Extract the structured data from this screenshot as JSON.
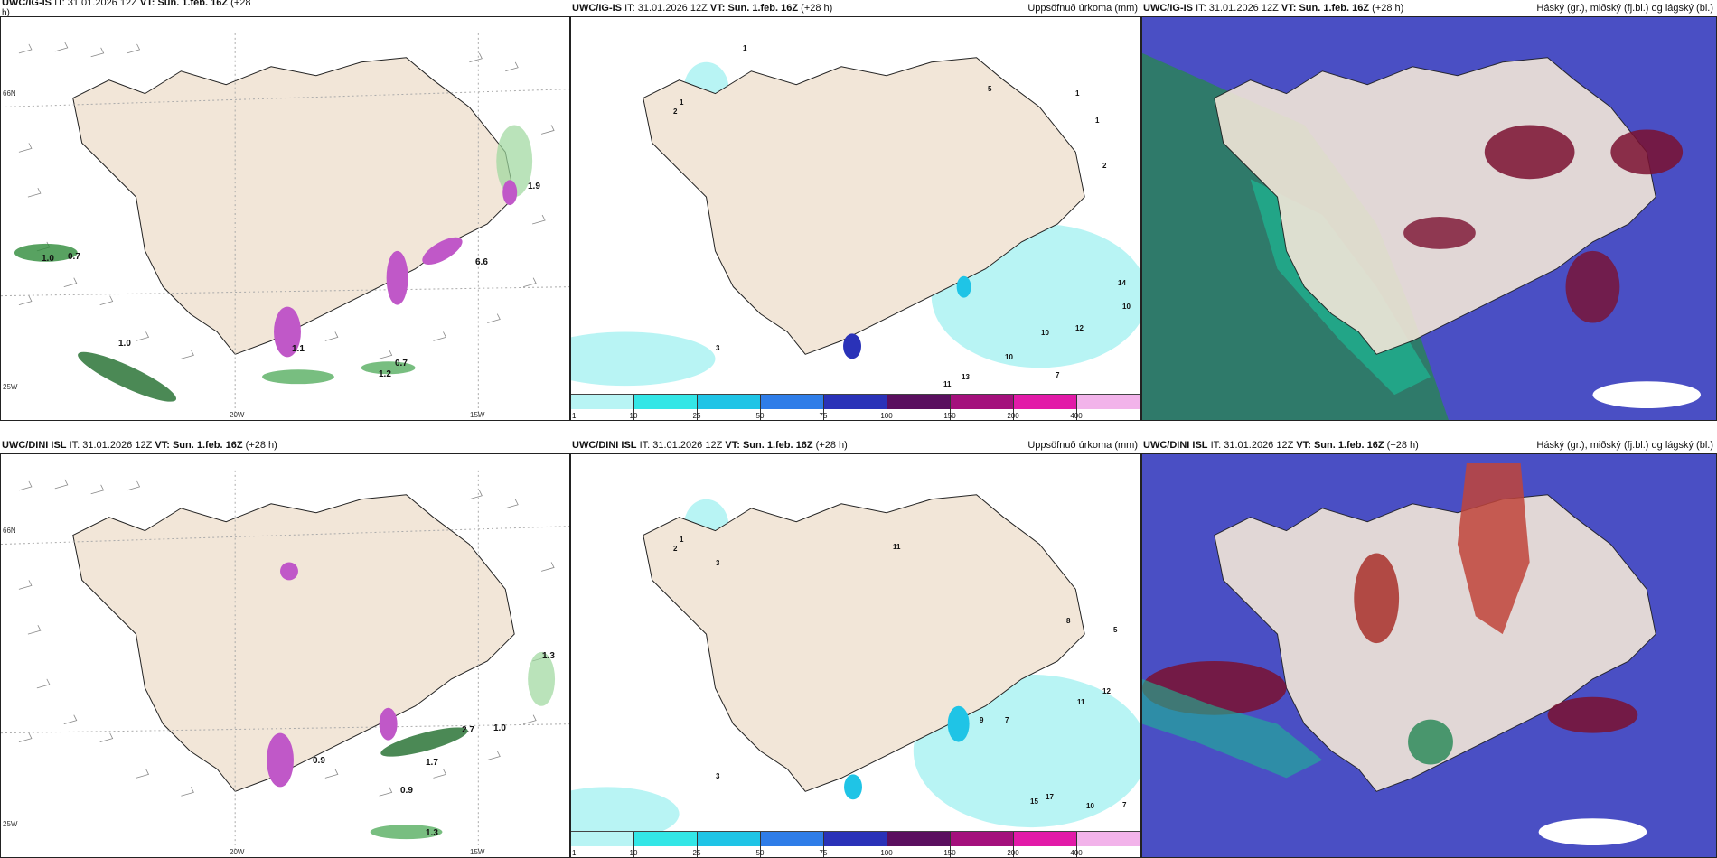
{
  "panels": {
    "wind_igis": {
      "model": "UWC/IG-IS",
      "it_label": "IT:",
      "it_value": "31.01.2026 12Z",
      "vt_label": "VT:",
      "vt_value": "Sun. 1.feb. 16Z",
      "lead": "(+28",
      "lead_wrap": "h)",
      "lon_labels": [
        "20W",
        "15W"
      ],
      "lat_labels": [
        "66N",
        "25W"
      ],
      "values": [
        "1.0",
        "0.7",
        "1.0",
        "1.1",
        "0.7",
        "1.2",
        "1.9",
        "6.6"
      ]
    },
    "precip_igis": {
      "model": "UWC/IG-IS",
      "it_label": "IT:",
      "it_value": "31.01.2026 12Z",
      "vt_label": "VT:",
      "vt_value": "Sun. 1.feb. 16Z",
      "lead": "(+28 h)",
      "field_title": "Uppsöfnuð úrkoma (mm)",
      "values": [
        "1",
        "2",
        "3",
        "5",
        "1",
        "1",
        "1",
        "2",
        "14",
        "10",
        "12",
        "10",
        "10",
        "13",
        "11",
        "7"
      ]
    },
    "cloud_igis": {
      "model": "UWC/IG-IS",
      "it_label": "IT:",
      "it_value": "31.01.2026 12Z",
      "vt_label": "VT:",
      "vt_value": "Sun. 1.feb. 16Z",
      "lead": "(+28 h)",
      "field_title": "Háský (gr.), miðský (fj.bl.) og lágský (bl.)"
    },
    "wind_dini": {
      "model": "UWC/DINI ISL",
      "it_label": "IT:",
      "it_value": "31.01.2026 12Z",
      "vt_label": "VT:",
      "vt_value": "Sun. 1.feb. 16Z",
      "lead": "(+28 h)",
      "lon_labels": [
        "20W",
        "15W"
      ],
      "lat_labels": [
        "66N",
        "25W"
      ],
      "values": [
        "1.3",
        "1.0",
        "2.7",
        "0.9",
        "1.3",
        "1.7",
        "0.9"
      ]
    },
    "precip_dini": {
      "model": "UWC/DINI ISL",
      "it_label": "IT:",
      "it_value": "31.01.2026 12Z",
      "vt_label": "VT:",
      "vt_value": "Sun. 1.feb. 16Z",
      "lead": "(+28 h)",
      "field_title": "Uppsöfnuð úrkoma (mm)",
      "values": [
        "1",
        "2",
        "3",
        "11",
        "8",
        "12",
        "5",
        "15",
        "17",
        "10",
        "7",
        "11",
        "9",
        "7",
        "3"
      ]
    },
    "cloud_dini": {
      "model": "UWC/DINI ISL",
      "it_label": "IT:",
      "it_value": "31.01.2026 12Z",
      "vt_label": "VT:",
      "vt_value": "Sun. 1.feb. 16Z",
      "lead": "(+28 h)",
      "field_title": "Háský (gr.), miðský (fj.bl.) og lágský (bl.)"
    }
  },
  "colorbar": {
    "ticks": [
      "1",
      "10",
      "25",
      "50",
      "75",
      "100",
      "150",
      "200",
      "400"
    ],
    "colors": [
      "#b8f4f4",
      "#33e6e6",
      "#1fc4e6",
      "#2f7de8",
      "#2a32b8",
      "#5a0f5f",
      "#a4107c",
      "#e21aa8",
      "#f2b3ea"
    ]
  },
  "colors": {
    "land": "#f2e6d8",
    "coast": "#222222",
    "low_cloud": "#3f43c0",
    "mid_cloud": "#1a8a6a",
    "high_cloud": "#7a1030"
  }
}
